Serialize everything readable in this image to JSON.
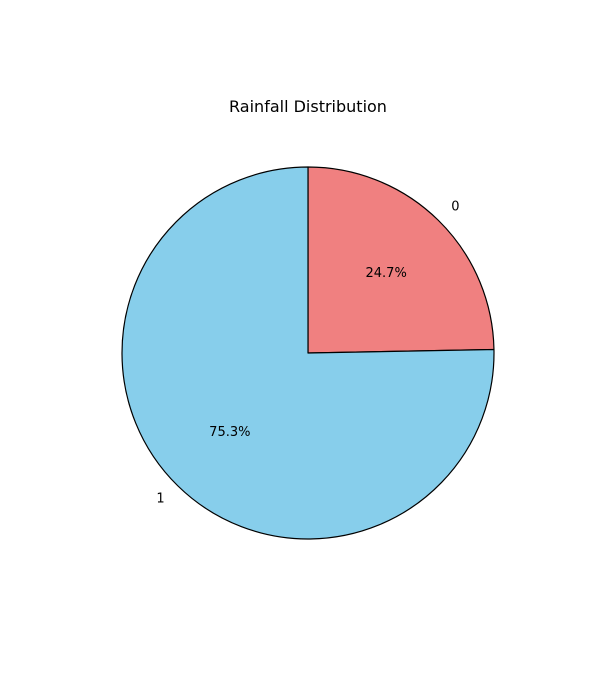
{
  "chart_data": {
    "type": "pie",
    "title": "Rainfall Distribution",
    "slices": [
      {
        "label": "0",
        "value": 24.7,
        "pct_label": "24.7%",
        "color": "#f08080"
      },
      {
        "label": "1",
        "value": 75.3,
        "pct_label": "75.3%",
        "color": "#87ceeb"
      }
    ],
    "start_angle_deg": 90,
    "direction": "clockwise",
    "edge_color": "#000000"
  }
}
